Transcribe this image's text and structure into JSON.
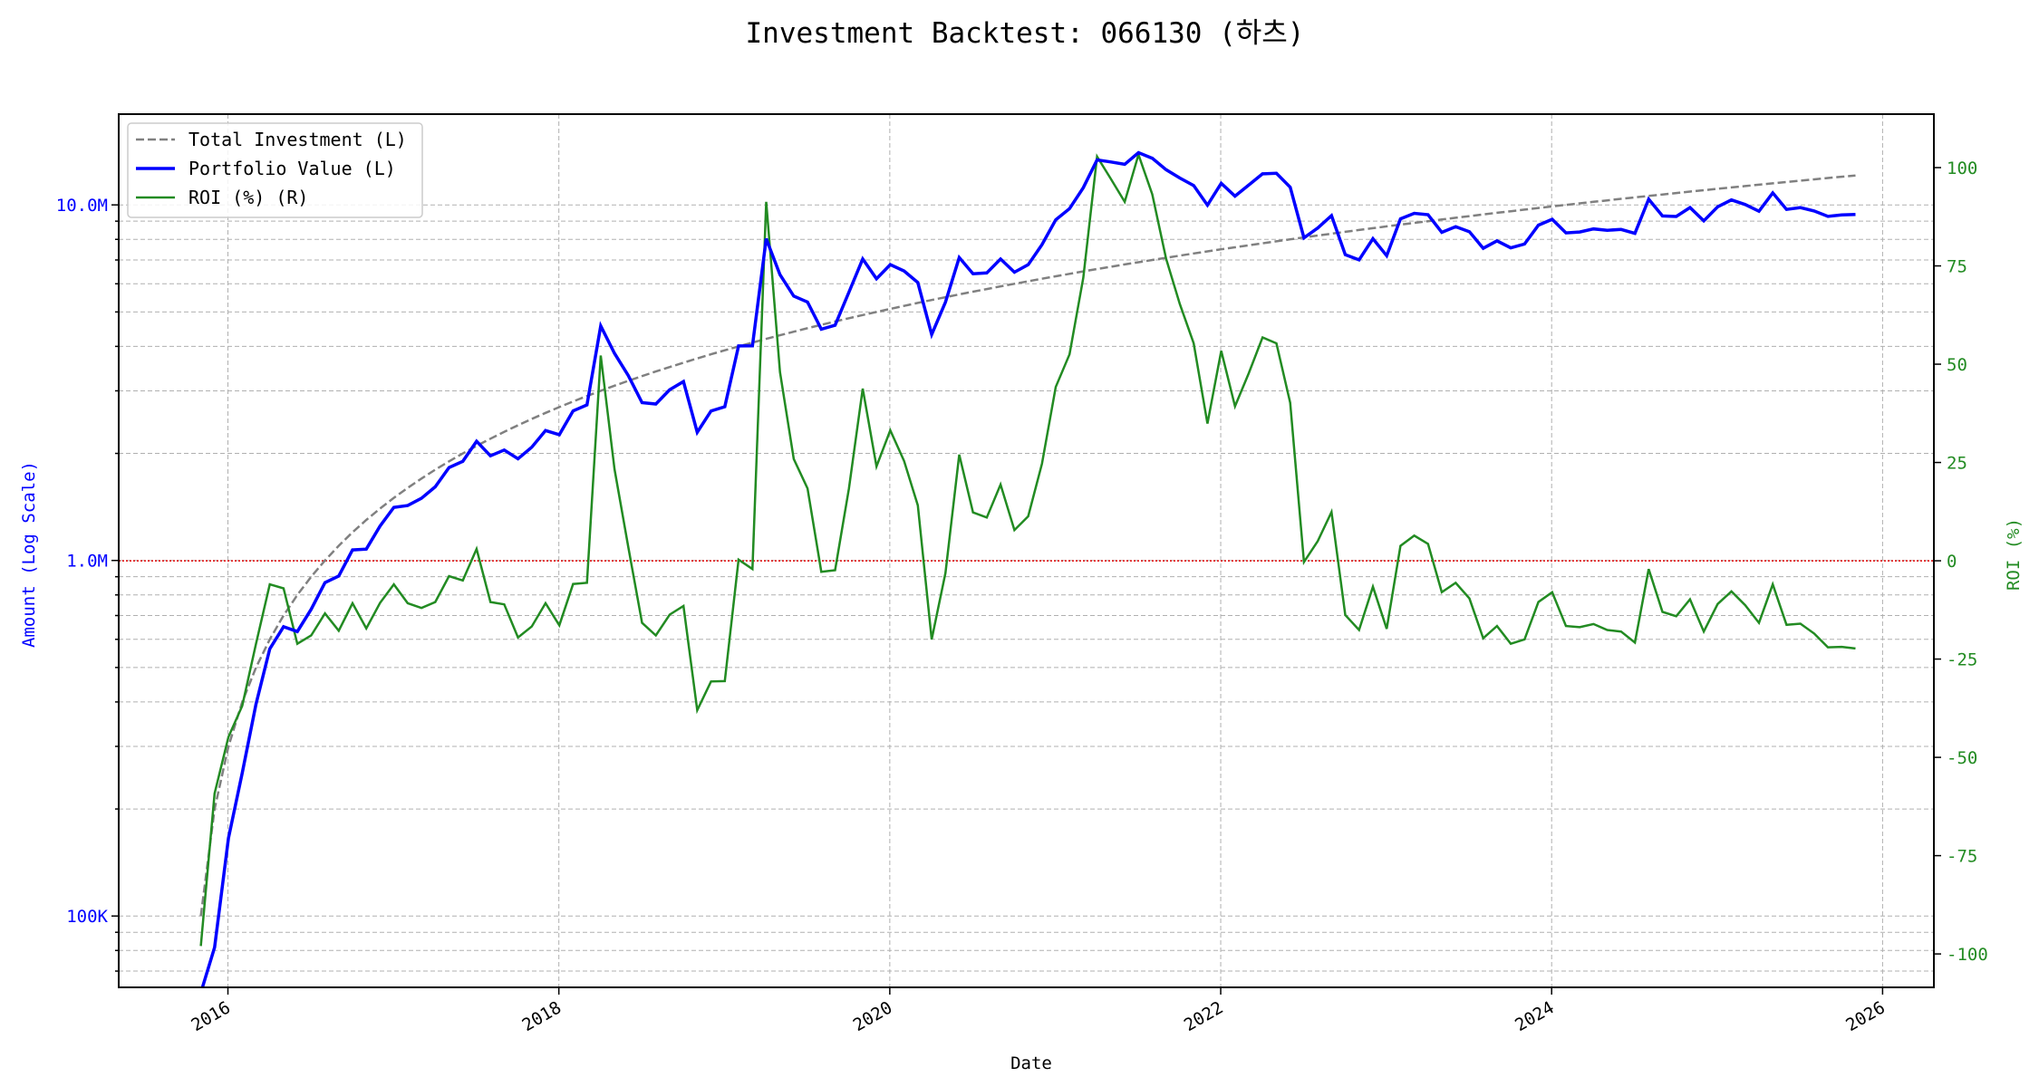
{
  "chart_data": {
    "type": "line",
    "title": "Investment Backtest: 066130 (하츠)",
    "xlabel": "Date",
    "ylabel_left": "Amount (Log Scale)",
    "ylabel_right": "ROI (%)",
    "x_start": "2015-11",
    "x_frequency": "monthly",
    "x_ticks": [
      "2016",
      "2018",
      "2020",
      "2022",
      "2024",
      "2026"
    ],
    "x_range_years": [
      2015.34,
      2026.31
    ],
    "y_left": {
      "scale": "log",
      "lim": [
        63000,
        18000000
      ],
      "ticks": [
        {
          "value": 100000,
          "label": "100K"
        },
        {
          "value": 1000000,
          "label": "1.0M"
        },
        {
          "value": 10000000,
          "label": "10.0M"
        }
      ],
      "color": "#0000ff"
    },
    "y_right": {
      "lim": [
        -108.5,
        113.6
      ],
      "ticks": [
        {
          "value": -100,
          "label": "-100"
        },
        {
          "value": -75,
          "label": "-75"
        },
        {
          "value": -50,
          "label": "-50"
        },
        {
          "value": -25,
          "label": "-25"
        },
        {
          "value": 0,
          "label": "0"
        },
        {
          "value": 25,
          "label": "25"
        },
        {
          "value": 50,
          "label": "50"
        },
        {
          "value": 75,
          "label": "75"
        },
        {
          "value": 100,
          "label": "100"
        }
      ],
      "color": "#228b22"
    },
    "reference_line": {
      "axis": "right",
      "value": 0,
      "color": "#e00000",
      "style": "dotted"
    },
    "grid": true,
    "legend": {
      "position": "top-left"
    },
    "value_scale": 1000,
    "series": [
      {
        "name": "Total Investment (L)",
        "axis": "left",
        "color": "#808080",
        "style": "dashed",
        "values": [
          100,
          200,
          300,
          400,
          500,
          600,
          700,
          800,
          900,
          1000,
          1100,
          1200,
          1300,
          1400,
          1500,
          1600,
          1700,
          1800,
          1900,
          2000,
          2100,
          2200,
          2300,
          2400,
          2500,
          2600,
          2700,
          2800,
          2900,
          3000,
          3100,
          3200,
          3300,
          3400,
          3500,
          3600,
          3700,
          3800,
          3900,
          4000,
          4100,
          4200,
          4300,
          4400,
          4500,
          4600,
          4700,
          4800,
          4900,
          5000,
          5100,
          5200,
          5300,
          5400,
          5500,
          5600,
          5700,
          5800,
          5900,
          6000,
          6100,
          6200,
          6300,
          6400,
          6500,
          6600,
          6700,
          6800,
          6900,
          7000,
          7100,
          7200,
          7300,
          7400,
          7500,
          7600,
          7700,
          7800,
          7900,
          8000,
          8100,
          8200,
          8300,
          8400,
          8500,
          8600,
          8700,
          8800,
          8900,
          9000,
          9100,
          9200,
          9300,
          9400,
          9500,
          9600,
          9700,
          9800,
          9900,
          10000,
          10100,
          10200,
          10300,
          10400,
          10500,
          10600,
          10700,
          10800,
          10900,
          11000,
          11100,
          11200,
          11300,
          11400,
          11500,
          11600,
          11700,
          11800,
          11900,
          12000,
          12100
        ]
      },
      {
        "name": "Portfolio Value (L)",
        "axis": "left",
        "color": "#0000ff",
        "style": "solid",
        "values": [
          2,
          81.6,
          165.6,
          252.4,
          394.5,
          564,
          651,
          631.2,
          729,
          866,
          904.2,
          1070.4,
          1076.4,
          1250.2,
          1410,
          1427.2,
          1496,
          1611,
          1825.9,
          1900,
          2163,
          1969,
          2044.7,
          1932,
          2082.5,
          2319.2,
          2257.2,
          2634.8,
          2737.6,
          4566,
          3822.3,
          3312,
          2778.6,
          2754,
          3020.5,
          3186,
          2294,
          2633.4,
          2706.6,
          4012,
          4013.9,
          8034.6,
          6364,
          5539.6,
          5328,
          4471.2,
          4587.2,
          5683.2,
          7046.2,
          6200,
          6793.2,
          6520.8,
          6047.3,
          4320,
          5329.5,
          7112,
          6401.1,
          6438,
          7044.6,
          6468,
          6789.3,
          7731.4,
          9084.6,
          9760,
          11180,
          13384.8,
          13205.7,
          13008.4,
          14027.7,
          13524,
          12559.9,
          11901.6,
          11336.9,
          9982.6,
          11505,
          10586.8,
          11372.9,
          12230.4,
          12268.7,
          11216,
          8075.7,
          8610,
          9329.2,
          7240.8,
          7004,
          8032.4,
          7194.9,
          9134.4,
          9469.6,
          9387,
          8372,
          8684.8,
          8407.2,
          7548.2,
          7923,
          7574.4,
          7760,
          8771,
          9108,
          8340,
          8393.1,
          8557.8,
          8487.2,
          8528,
          8316,
          10377.4,
          9309,
          9277.2,
          9831.8,
          9020,
          9879,
          10326.4,
          10023.1,
          9598.8,
          10810,
          9709.2,
          9828,
          9617,
          9282,
          9372,
          9401.7
        ]
      },
      {
        "name": "ROI (%) (R)",
        "axis": "right",
        "color": "#228b22",
        "style": "solid",
        "values": [
          -98,
          -59.2,
          -44.8,
          -36.9,
          -21.1,
          -6,
          -7,
          -21.1,
          -19,
          -13.4,
          -17.8,
          -10.8,
          -17.2,
          -10.7,
          -6,
          -10.8,
          -12,
          -10.5,
          -3.9,
          -5,
          3,
          -10.5,
          -11.1,
          -19.5,
          -16.7,
          -10.8,
          -16.4,
          -5.9,
          -5.6,
          52.2,
          23.3,
          3.5,
          -15.8,
          -19,
          -13.7,
          -11.5,
          -38,
          -30.7,
          -30.6,
          0.3,
          -2.1,
          91.3,
          48,
          25.9,
          18.4,
          -2.8,
          -2.4,
          18.4,
          43.8,
          24,
          33.2,
          25.4,
          14.1,
          -20,
          -3.1,
          27,
          12.3,
          11,
          19.4,
          7.8,
          11.3,
          24.7,
          44.2,
          52.5,
          72,
          102.8,
          97.1,
          91.3,
          103.3,
          93.2,
          76.9,
          65.3,
          55.3,
          34.9,
          53.4,
          39.3,
          47.7,
          56.8,
          55.3,
          40.2,
          -0.3,
          5,
          12.4,
          -13.8,
          -17.6,
          -6.6,
          -17.3,
          3.8,
          6.4,
          4.3,
          -8,
          -5.6,
          -9.6,
          -19.7,
          -16.6,
          -21.1,
          -20,
          -10.5,
          -8,
          -16.6,
          -16.9,
          -16.1,
          -17.6,
          -18,
          -20.8,
          -2.1,
          -13,
          -14.1,
          -9.8,
          -18,
          -11,
          -7.8,
          -11.3,
          -15.8,
          -6,
          -16.3,
          -16,
          -18.5,
          -22,
          -21.9,
          -22.3
        ]
      }
    ]
  }
}
